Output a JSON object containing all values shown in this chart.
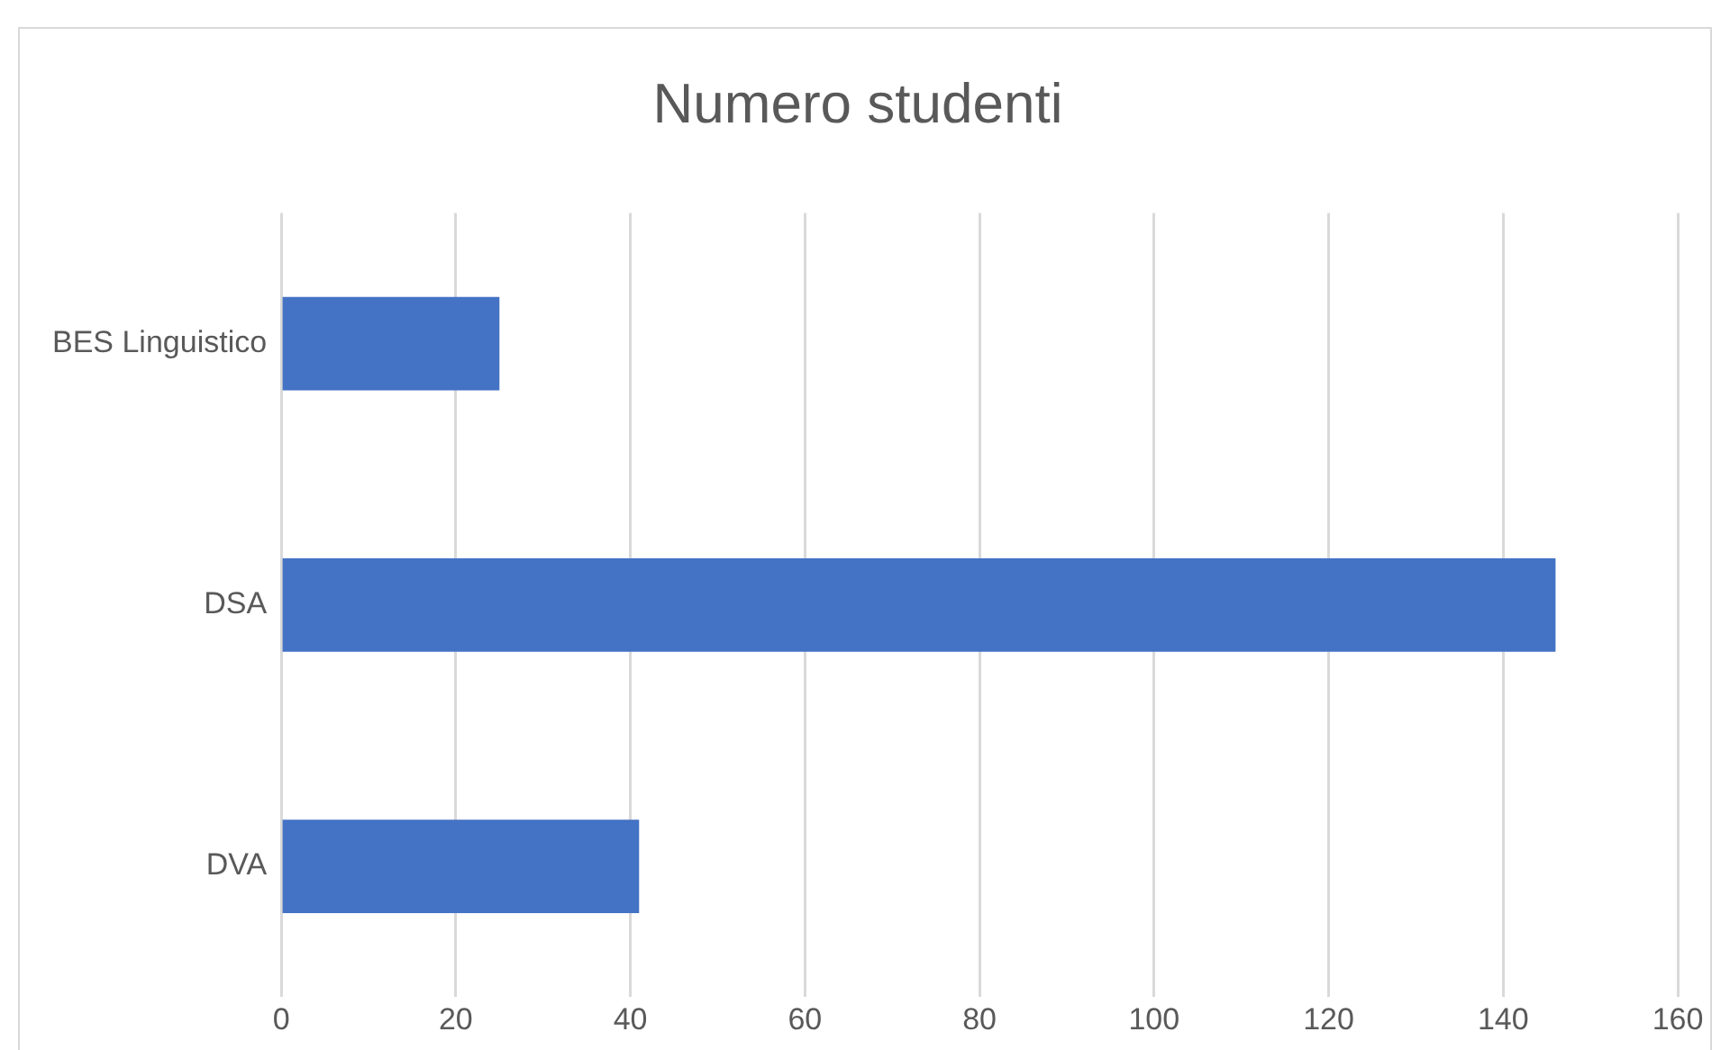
{
  "chart_data": {
    "type": "bar",
    "orientation": "horizontal",
    "title": "Numero studenti",
    "categories": [
      "BES Linguistico",
      "DSA",
      "DVA"
    ],
    "values": [
      25,
      146,
      41
    ],
    "color": "#4472c4",
    "xlim": [
      0,
      160
    ],
    "xticks": [
      0,
      20,
      40,
      60,
      80,
      100,
      120,
      140,
      160
    ],
    "grid": "x",
    "legend": false
  }
}
